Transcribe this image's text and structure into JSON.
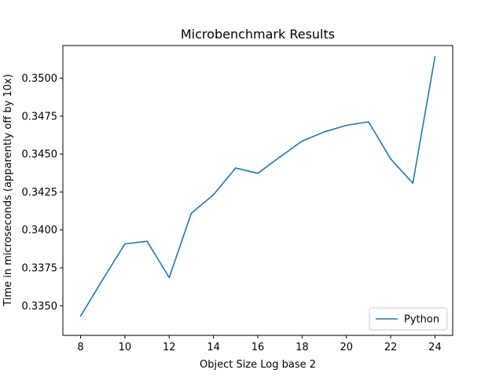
{
  "chart_data": {
    "type": "line",
    "title": "Microbenchmark Results",
    "xlabel": "Object Size Log base 2",
    "ylabel": "Time in microseconds (apparently off by 10x)",
    "xlim": [
      7.2,
      24.8
    ],
    "ylim": [
      0.33305,
      0.35215
    ],
    "xticks": [
      8,
      10,
      12,
      14,
      16,
      18,
      20,
      22,
      24
    ],
    "yticks": [
      0.335,
      0.3375,
      0.34,
      0.3425,
      0.345,
      0.3475,
      0.35
    ],
    "ytick_labels": [
      "0.3350",
      "0.3375",
      "0.3400",
      "0.3425",
      "0.3450",
      "0.3475",
      "0.3500"
    ],
    "grid": false,
    "legend_position": "lower-right",
    "series": [
      {
        "name": "Python",
        "color": "#1f77b4",
        "x": [
          8,
          9,
          10,
          11,
          12,
          13,
          14,
          15,
          16,
          17,
          18,
          19,
          20,
          21,
          22,
          23,
          24
        ],
        "y": [
          0.33432,
          0.33673,
          0.33908,
          0.33925,
          0.33686,
          0.3411,
          0.34232,
          0.34408,
          0.34373,
          0.34481,
          0.34585,
          0.34646,
          0.34689,
          0.34713,
          0.34468,
          0.34308,
          0.35141
        ]
      }
    ]
  }
}
